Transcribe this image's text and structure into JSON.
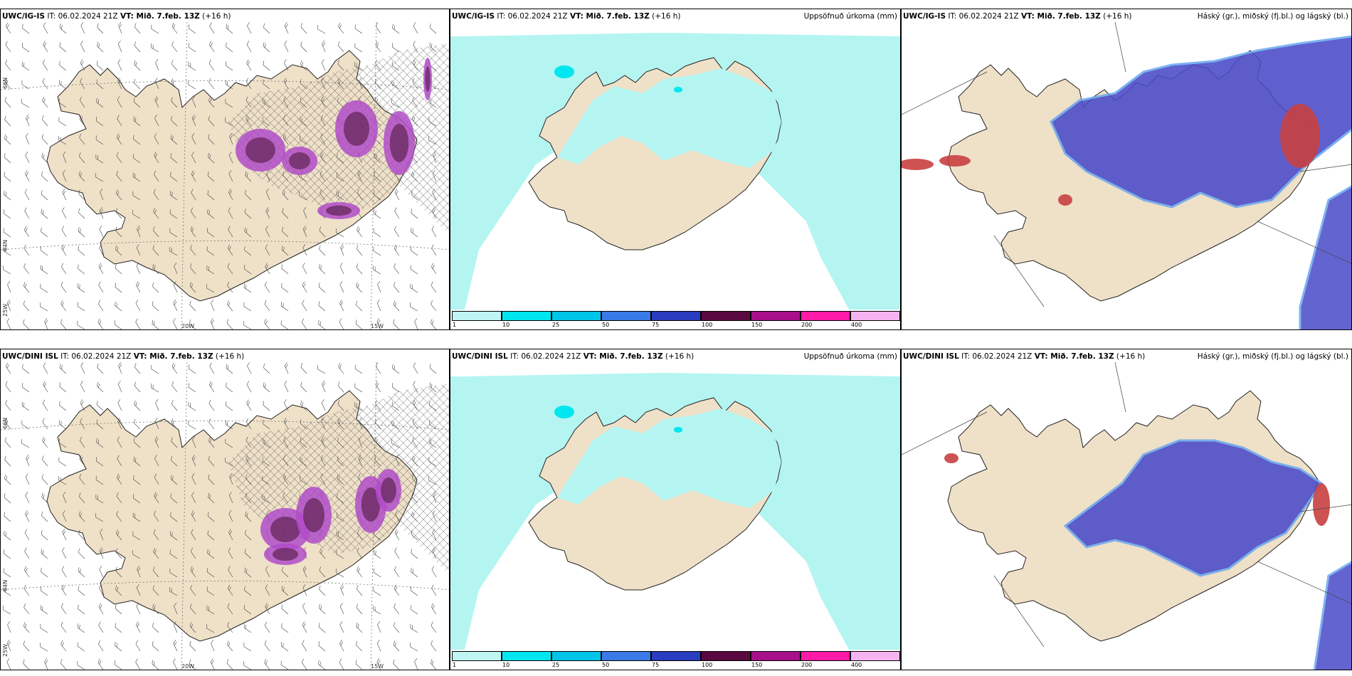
{
  "rows": [
    {
      "model": "UWC/IG-IS",
      "it_label": "IT: 06.02.2024 21Z",
      "vt_label": "VT: Mið. 7.feb. 13Z",
      "lead": "(+16 h)"
    },
    {
      "model": "UWC/DINI ISL",
      "it_label": "IT: 06.02.2024 21Z",
      "vt_label": "VT: Mið. 7.feb. 13Z",
      "lead": "(+16 h)"
    }
  ],
  "panels": {
    "precip_title": "Uppsöfnuð úrkoma (mm)",
    "cloud_title": "Háský (gr.), miðský (fj.bl.) og lágský (bl.)"
  },
  "axes": {
    "lon_20w": "20W",
    "lon_15w": "15W",
    "lat_66n": "66N",
    "lat_64n": "64N",
    "lon_25w": "25W"
  },
  "colorbar": {
    "labels": [
      "1",
      "10",
      "25",
      "50",
      "75",
      "100",
      "150",
      "200",
      "400"
    ],
    "colors": [
      "#bff5f5",
      "#00e6f0",
      "#00c4e8",
      "#3a7ae6",
      "#2a3cc0",
      "#5a0a40",
      "#a8108a",
      "#ff1aa8",
      "#f5b4f0"
    ]
  },
  "map_colors": {
    "land": "#efe0c8",
    "sea": "#ffffff",
    "precip_light": "#b4f5f2",
    "snow_purple": "#b04cc8",
    "snow_dark": "#6a2a60",
    "cloud_low": "#4a4ac8",
    "cloud_mid": "#6aa8f0",
    "cloud_high": "#c84040"
  }
}
